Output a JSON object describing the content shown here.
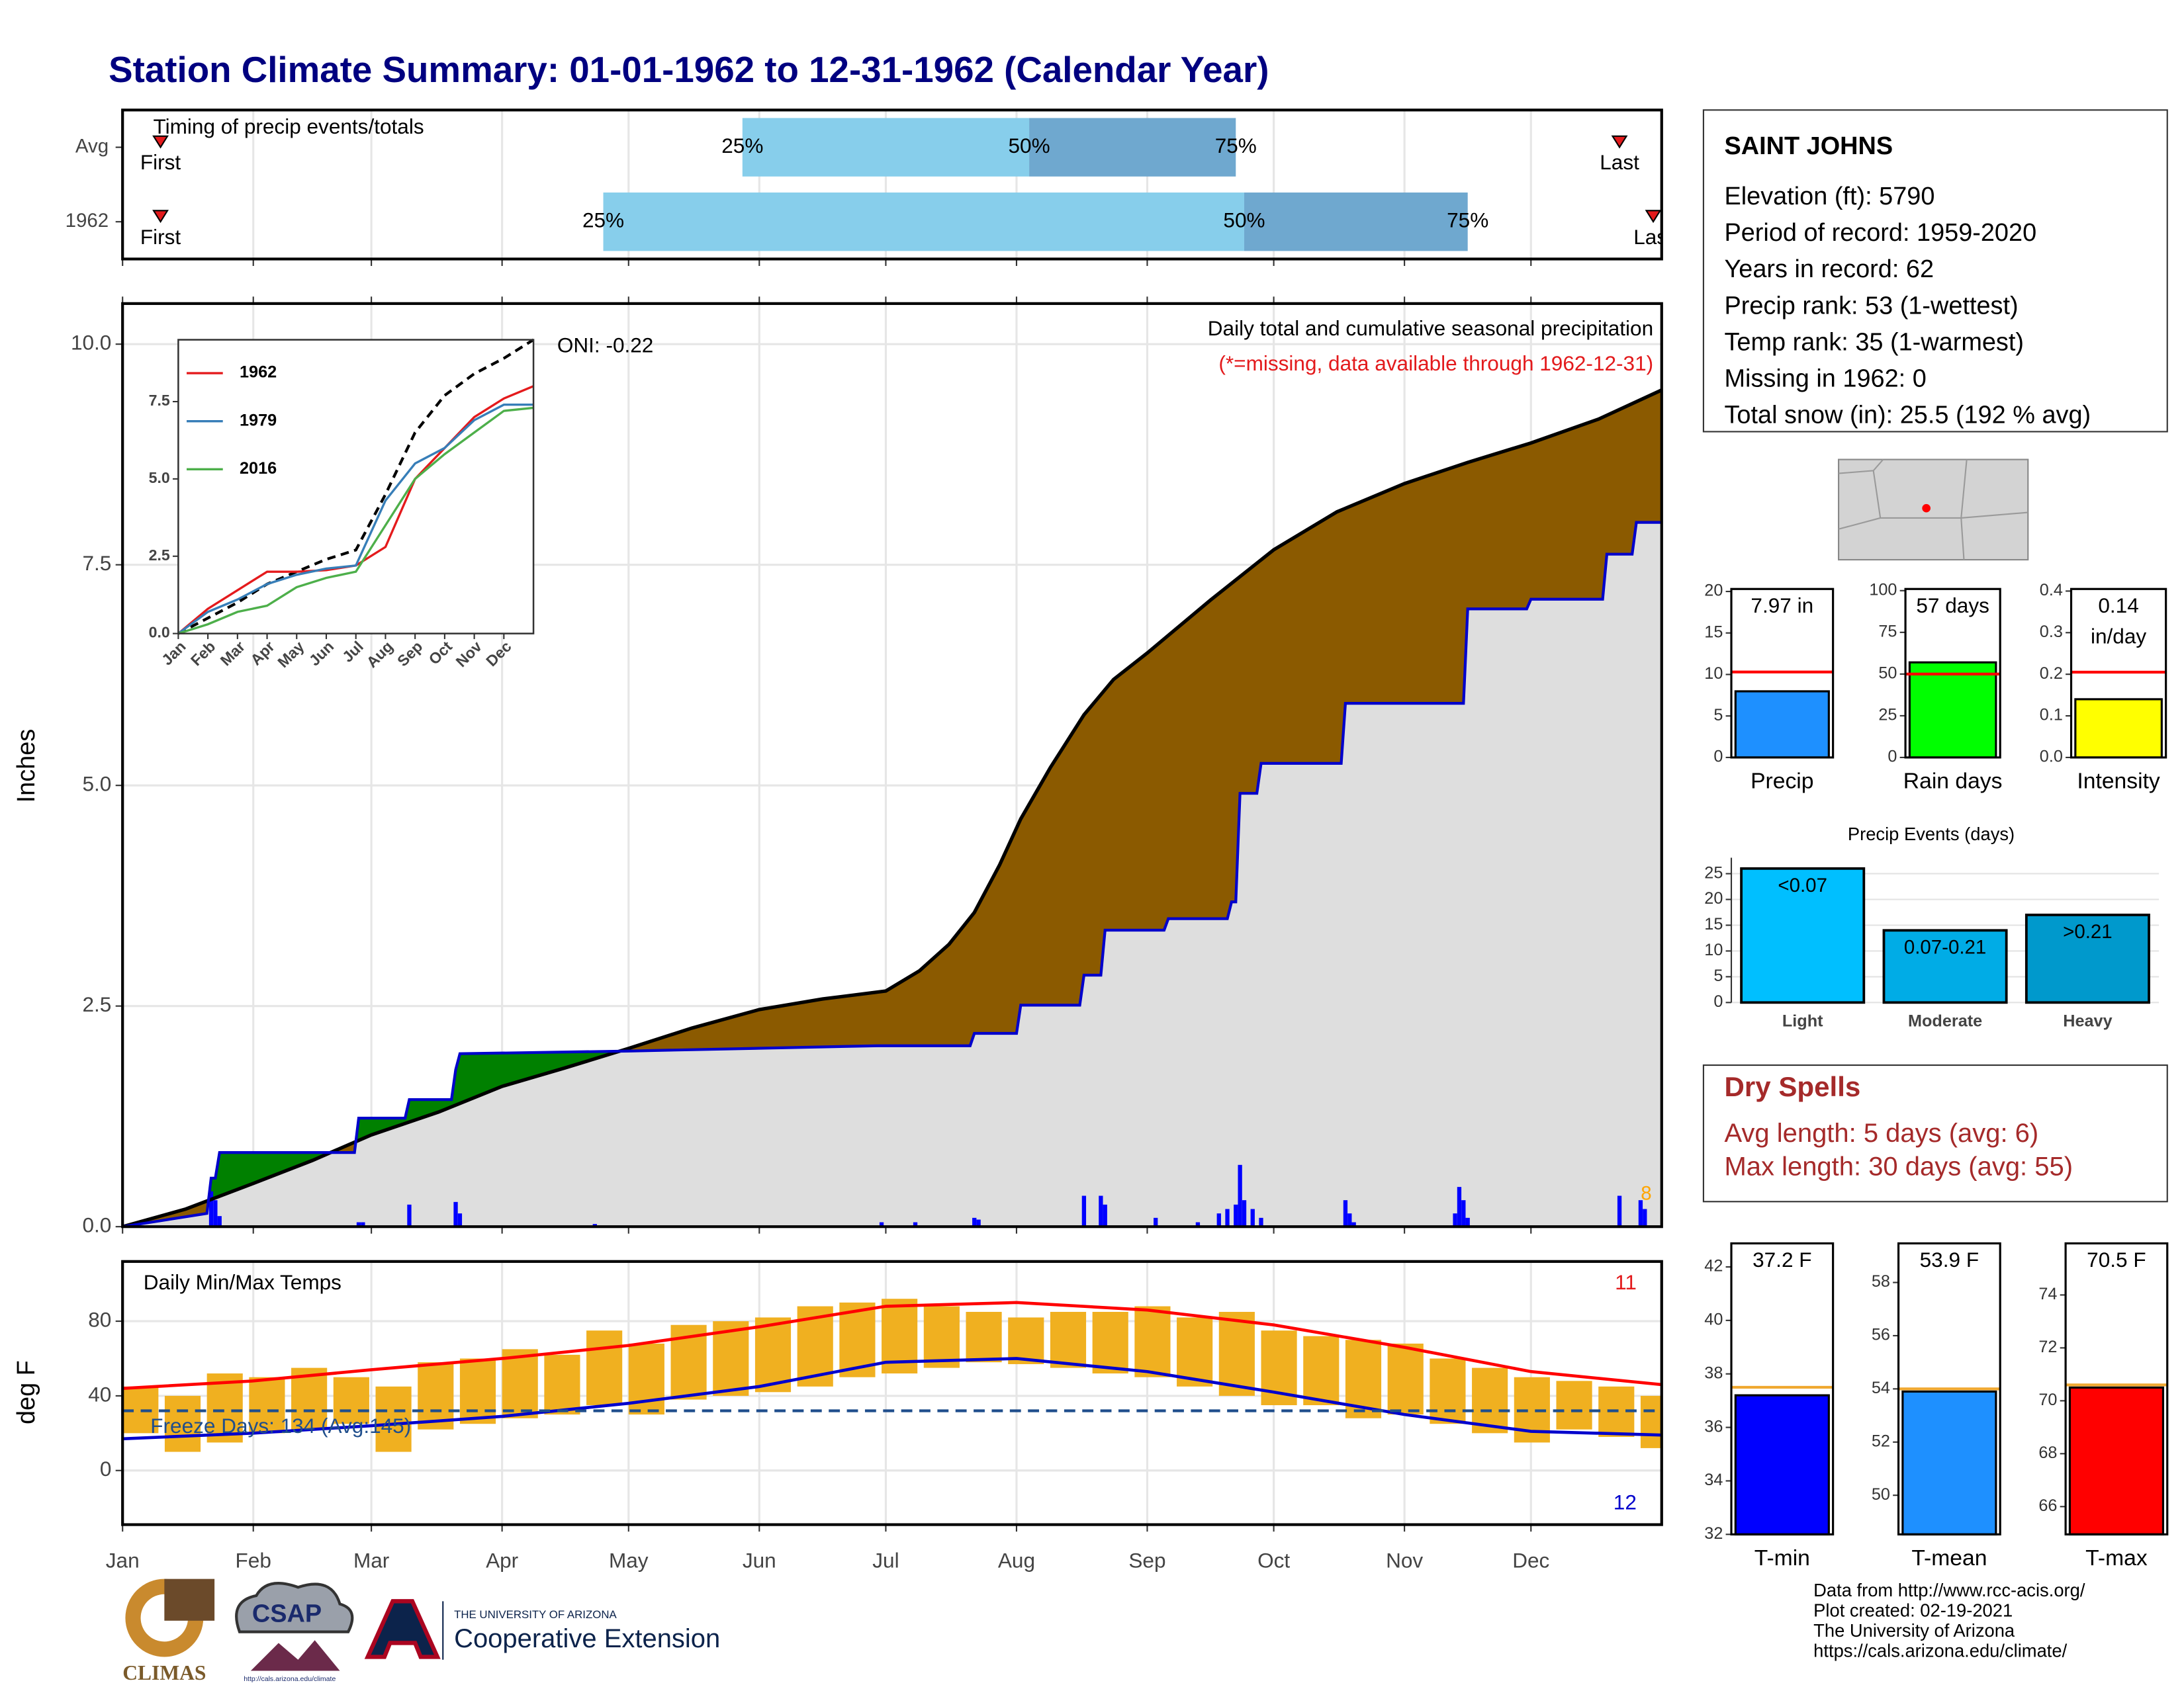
{
  "title": "Station Climate Summary: 01-01-1962 to 12-31-1962 (Calendar Year)",
  "chart_data": [
    {
      "type": "timing",
      "title": "Timing of precip events/totals",
      "categories": [
        "Avg",
        "1962"
      ],
      "xlim": [
        0,
        365
      ],
      "quartiles": [
        [
          147,
          215,
          264
        ],
        [
          114,
          266,
          319
        ]
      ],
      "quartile_labels": [
        "25%",
        "50%",
        "75%"
      ],
      "first": [
        9,
        9
      ],
      "last": [
        355,
        363
      ],
      "first_label": "First",
      "last_label": "Last",
      "colors": [
        "#87ceeb",
        "#6fa8cf"
      ],
      "marker_color": "#e31a1c"
    },
    {
      "type": "cumulative",
      "title": "Daily total and cumulative seasonal precipitation",
      "subtitle": "(*=missing, data available through 1962-12-31)",
      "annotation": "ONI: -0.22",
      "corner_count": "8",
      "ylabel": "Inches",
      "xlim": [
        0,
        365
      ],
      "ylim": [
        0,
        10.46
      ],
      "yticks": [
        {
          "value": 0,
          "label": "0.0"
        },
        2.5,
        {
          "value": 5,
          "label": "5.0"
        },
        7.5,
        {
          "value": 10,
          "label": "10.0"
        }
      ],
      "grid": true,
      "average": {
        "color": "#000000",
        "fill": "#dedede",
        "x": [
          0,
          15,
          31,
          45,
          59,
          75,
          90,
          105,
          120,
          135,
          151,
          166,
          181,
          189,
          196,
          202,
          208,
          213,
          220,
          228,
          235,
          243,
          258,
          273,
          288,
          304,
          319,
          334,
          350,
          365
        ],
        "values": [
          0,
          0.2,
          0.49,
          0.75,
          1.04,
          1.3,
          1.59,
          1.8,
          2.02,
          2.25,
          2.46,
          2.58,
          2.67,
          2.9,
          3.2,
          3.56,
          4.1,
          4.62,
          5.2,
          5.8,
          6.2,
          6.5,
          7.1,
          7.67,
          8.1,
          8.42,
          8.66,
          8.88,
          9.15,
          9.48
        ]
      },
      "observed": {
        "color": "#0000cc",
        "deficit_fill": "#8b5a00",
        "surplus_fill": "#008000",
        "x": [
          0,
          20,
          21,
          22,
          23,
          55,
          56,
          67,
          68,
          78,
          79,
          80,
          120,
          179,
          201,
          202,
          212,
          213,
          227,
          228,
          232,
          233,
          247,
          248,
          262,
          263,
          264,
          265,
          269,
          270,
          289,
          290,
          318,
          319,
          333,
          334,
          351,
          352,
          358,
          359,
          365
        ],
        "values": [
          0,
          0.15,
          0.55,
          0.55,
          0.84,
          0.84,
          1.23,
          1.23,
          1.44,
          1.44,
          1.78,
          1.96,
          1.99,
          2.05,
          2.05,
          2.19,
          2.19,
          2.51,
          2.51,
          2.85,
          2.85,
          3.36,
          3.36,
          3.49,
          3.49,
          3.68,
          3.68,
          4.91,
          4.91,
          5.25,
          5.25,
          5.93,
          5.93,
          7.0,
          7.0,
          7.11,
          7.11,
          7.62,
          7.62,
          7.98,
          7.98
        ]
      },
      "daily": {
        "color": "#0000ff",
        "x": [
          21,
          22,
          23,
          56,
          57,
          68,
          79,
          80,
          112,
          180,
          188,
          202,
          203,
          228,
          232,
          233,
          245,
          255,
          260,
          262,
          264,
          265,
          266,
          268,
          270,
          290,
          291,
          292,
          316,
          317,
          318,
          319,
          355,
          360,
          361
        ],
        "values": [
          0.4,
          0.3,
          0.12,
          0.05,
          0.05,
          0.25,
          0.28,
          0.15,
          0.03,
          0.05,
          0.05,
          0.1,
          0.08,
          0.35,
          0.35,
          0.25,
          0.1,
          0.05,
          0.15,
          0.2,
          0.25,
          0.7,
          0.3,
          0.2,
          0.1,
          0.3,
          0.15,
          0.05,
          0.15,
          0.45,
          0.3,
          0.1,
          0.35,
          0.3,
          0.2
        ]
      }
    },
    {
      "type": "temperature",
      "title": "Daily Min/Max Temps",
      "ylabel": "deg F",
      "xlim": [
        0,
        365
      ],
      "ylim": [
        -29,
        112
      ],
      "yticks": [
        0,
        40,
        80
      ],
      "xticks": [
        {
          "value": 0,
          "label": "Jan"
        },
        {
          "value": 31,
          "label": "Feb"
        },
        {
          "value": 59,
          "label": "Mar"
        },
        {
          "value": 90,
          "label": "Apr"
        },
        {
          "value": 120,
          "label": "May"
        },
        {
          "value": 151,
          "label": "Jun"
        },
        {
          "value": 181,
          "label": "Jul"
        },
        {
          "value": 212,
          "label": "Aug"
        },
        {
          "value": 243,
          "label": "Sep"
        },
        {
          "value": 273,
          "label": "Oct"
        },
        {
          "value": 304,
          "label": "Nov"
        },
        {
          "value": 334,
          "label": "Dec"
        }
      ],
      "grid": true,
      "daily_color": "#f0b020",
      "daily_x": [
        0,
        10,
        20,
        30,
        40,
        50,
        60,
        70,
        80,
        90,
        100,
        110,
        120,
        130,
        140,
        150,
        160,
        170,
        180,
        190,
        200,
        210,
        220,
        230,
        240,
        250,
        260,
        270,
        280,
        290,
        300,
        310,
        320,
        330,
        340,
        350,
        360
      ],
      "daily_min": [
        20,
        10,
        15,
        20,
        22,
        25,
        10,
        22,
        25,
        28,
        30,
        35,
        30,
        38,
        40,
        42,
        45,
        50,
        52,
        55,
        58,
        57,
        55,
        52,
        50,
        45,
        40,
        35,
        35,
        28,
        30,
        25,
        20,
        15,
        22,
        18,
        12
      ],
      "daily_max": [
        45,
        40,
        52,
        50,
        55,
        50,
        45,
        58,
        60,
        65,
        62,
        75,
        68,
        78,
        80,
        82,
        88,
        90,
        92,
        88,
        85,
        82,
        85,
        85,
        88,
        82,
        85,
        75,
        72,
        70,
        68,
        60,
        55,
        50,
        48,
        45,
        40
      ],
      "normals_x": [
        0,
        31,
        59,
        90,
        120,
        151,
        181,
        212,
        243,
        273,
        304,
        334,
        365
      ],
      "normal_max": [
        44,
        48,
        54,
        60,
        67,
        77,
        88,
        90,
        86,
        78,
        66,
        53,
        46
      ],
      "normal_min": [
        17,
        20,
        24,
        29,
        36,
        45,
        58,
        60,
        53,
        42,
        30,
        21,
        19
      ],
      "normal_max_color": "#ff0000",
      "normal_min_color": "#0000cc",
      "freeze": {
        "value": 32,
        "label": "Freeze Days: 134 (Avg:145)",
        "color": "#1f4e8c"
      },
      "record_high_count": 11,
      "record_low_count": 12
    },
    {
      "type": "line",
      "xlim": [
        0,
        12
      ],
      "ylim": [
        0,
        9.5
      ],
      "yticks": [
        {
          "value": 0,
          "label": "0.0"
        },
        2.5,
        {
          "value": 5,
          "label": "5.0"
        },
        7.5
      ],
      "xticks": [
        {
          "value": 0,
          "label": "Jan"
        },
        {
          "value": 1,
          "label": "Feb"
        },
        {
          "value": 2,
          "label": "Mar"
        },
        {
          "value": 3,
          "label": "Apr"
        },
        {
          "value": 4,
          "label": "May"
        },
        {
          "value": 5,
          "label": "Jun"
        },
        {
          "value": 6,
          "label": "Jul"
        },
        {
          "value": 7,
          "label": "Aug"
        },
        {
          "value": 8,
          "label": "Sep"
        },
        {
          "value": 9,
          "label": "Oct"
        },
        {
          "value": 10,
          "label": "Nov"
        },
        {
          "value": 11,
          "label": "Dec"
        }
      ],
      "x": [
        0,
        1,
        2,
        3,
        4,
        5,
        6,
        7,
        8,
        9,
        10,
        11,
        12
      ],
      "series": [
        {
          "color": "#000000",
          "dashed": true,
          "values": [
            0,
            0.5,
            1.0,
            1.6,
            2.0,
            2.4,
            2.7,
            4.5,
            6.5,
            7.7,
            8.4,
            8.9,
            9.5
          ]
        },
        {
          "name": "1962",
          "color": "#e41a1c",
          "values": [
            0,
            0.8,
            1.4,
            2.0,
            2.0,
            2.05,
            2.2,
            2.8,
            5.0,
            6.0,
            7.0,
            7.6,
            8.0
          ]
        },
        {
          "name": "1979",
          "color": "#377eb8",
          "values": [
            0,
            0.7,
            1.1,
            1.6,
            1.9,
            2.1,
            2.2,
            4.3,
            5.5,
            6.0,
            6.9,
            7.4,
            7.4
          ]
        },
        {
          "name": "2016",
          "color": "#4daf4a",
          "values": [
            0,
            0.3,
            0.7,
            0.9,
            1.5,
            1.8,
            2.0,
            3.5,
            5.0,
            5.8,
            6.5,
            7.2,
            7.3
          ]
        }
      ]
    },
    {
      "type": "summary_bar",
      "category": "Precip",
      "value": 7.97,
      "value_label": "7.97 in",
      "average": 10.3,
      "color": "#1e90ff",
      "average_color": "#ff0000",
      "ylim": [
        0,
        20.3
      ],
      "yticks": [
        0,
        5,
        10,
        15,
        20
      ]
    },
    {
      "type": "summary_bar",
      "category": "Rain days",
      "value": 57,
      "value_label": "57 days",
      "average": 50,
      "color": "#00ff00",
      "average_color": "#ff0000",
      "ylim": [
        0,
        101
      ],
      "yticks": [
        0,
        25,
        50,
        75,
        100
      ]
    },
    {
      "type": "summary_bar",
      "category": "Intensity",
      "value": 0.14,
      "value_label": "0.14 in/day",
      "average": 0.205,
      "color": "#ffff00",
      "average_color": "#ff0000",
      "ylim": [
        0,
        0.405
      ],
      "yticks": [
        {
          "value": 0,
          "label": "0.0"
        },
        0.1,
        0.2,
        0.3,
        0.4
      ]
    },
    {
      "type": "bar",
      "title": "Precip Events (days)",
      "categories": [
        "Light",
        "Moderate",
        "Heavy"
      ],
      "values": [
        26,
        14,
        17
      ],
      "bar_labels": [
        "<0.07",
        "0.07-0.21",
        ">0.21"
      ],
      "colors": [
        "#00bfff",
        "#00ace6",
        "#0099cc"
      ],
      "ylim": [
        0,
        28.1
      ],
      "yticks": [
        0,
        5,
        10,
        15,
        20,
        25
      ],
      "grid": true
    },
    {
      "type": "summary_bar",
      "category": "T-min",
      "value": 37.2,
      "value_label": "37.2 F",
      "average": 37.5,
      "color": "#0000ff",
      "average_color": "#f0a830",
      "ylim": [
        32,
        42.88
      ],
      "yticks": [
        32,
        34,
        36,
        38,
        40,
        42
      ]
    },
    {
      "type": "summary_bar",
      "category": "T-mean",
      "value": 53.9,
      "value_label": "53.9 F",
      "average": 54.0,
      "color": "#1e90ff",
      "average_color": "#f0a830",
      "ylim": [
        48.53,
        59.47
      ],
      "yticks": [
        50,
        52,
        54,
        56,
        58
      ]
    },
    {
      "type": "summary_bar",
      "category": "T-max",
      "value": 70.5,
      "value_label": "70.5 F",
      "average": 70.6,
      "color": "#ff0000",
      "average_color": "#f0a830",
      "ylim": [
        64.95,
        75.95
      ],
      "yticks": [
        66,
        68,
        70,
        72,
        74
      ]
    }
  ],
  "station": {
    "name": "SAINT JOHNS",
    "lines": [
      "Elevation (ft): 5790",
      "Period of record: 1959-2020",
      "Years in record: 62",
      "Precip rank: 53 (1-wettest)",
      "Temp rank: 35 (1-warmest)",
      "Missing in 1962: 0",
      "Total snow (in): 25.5 (192 % avg)"
    ]
  },
  "dry_spells": {
    "title": "Dry Spells",
    "lines": [
      "Avg length: 5 days (avg: 6)",
      "Max length: 30 days (avg: 55)"
    ]
  },
  "footer": [
    "Data from http://www.rcc-acis.org/",
    "Plot created: 02-19-2021",
    "The University of Arizona",
    "https://cals.arizona.edu/climate/"
  ],
  "logos": {
    "climas": "CLIMAS",
    "csap": "CSAP",
    "csap_url": "http://cals.arizona.edu/climate",
    "university": "THE UNIVERSITY OF ARIZONA",
    "extension": "Cooperative Extension"
  }
}
